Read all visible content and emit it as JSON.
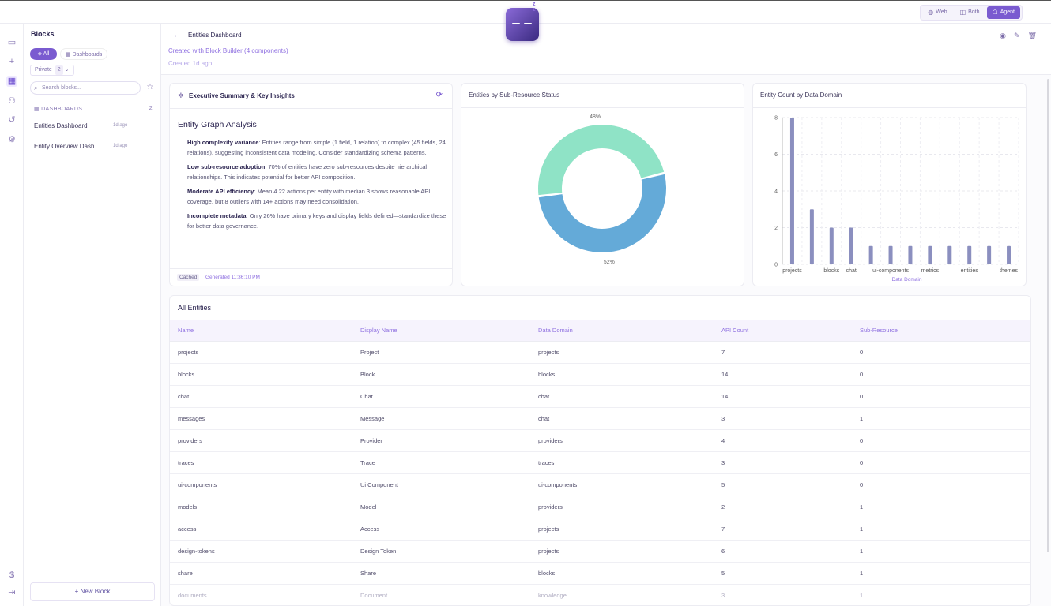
{
  "topbar": {
    "modes": [
      {
        "label": "Web",
        "icon": "globe-icon",
        "active": false
      },
      {
        "label": "Both",
        "icon": "split-icon",
        "active": false
      },
      {
        "label": "Agent",
        "icon": "robot-icon",
        "active": true
      }
    ]
  },
  "sidebar": {
    "title": "Blocks",
    "filters": {
      "all": "All",
      "dashboards": "Dashboards"
    },
    "private": {
      "label": "Private",
      "count": "2"
    },
    "search_placeholder": "Search blocks...",
    "section": {
      "label": "DASHBOARDS",
      "count": "2"
    },
    "items": [
      {
        "label": "Entities Dashboard",
        "ago": "1d ago"
      },
      {
        "label": "Entity Overview Dash...",
        "ago": "1d ago"
      }
    ],
    "new_block": "New Block"
  },
  "header": {
    "title": "Entities Dashboard",
    "subtitle": "Created with Block Builder (4 components)",
    "created": "Created 1d ago"
  },
  "insights": {
    "title": "Executive Summary & Key Insights",
    "heading": "Entity Graph Analysis",
    "points": [
      {
        "bold": "High complexity variance",
        "text": ": Entities range from simple (1 field, 1 relation) to complex (45 fields, 24 relations), suggesting inconsistent data modeling. Consider standardizing schema patterns."
      },
      {
        "bold": "Low sub-resource adoption",
        "text": ": 70% of entities have zero sub-resources despite hierarchical relationships. This indicates potential for better API composition."
      },
      {
        "bold": "Moderate API efficiency",
        "text": ": Mean 4.22 actions per entity with median 3 shows reasonable API coverage, but 8 outliers with 14+ actions may need consolidation."
      },
      {
        "bold": "Incomplete metadata",
        "text": ": Only 26% have primary keys and display fields defined—standardize these for better data governance."
      }
    ],
    "cached": "Cached",
    "generated": "Generated 11:36:10 PM"
  },
  "chart_data": [
    {
      "type": "pie",
      "title": "Entities by Sub-Resource Status",
      "slices": [
        {
          "name": "",
          "value": 48,
          "label": "48%",
          "color": "#8fe3c6"
        },
        {
          "name": "",
          "value": 52,
          "label": "52%",
          "color": "#64aad8"
        }
      ]
    },
    {
      "type": "bar",
      "title": "Entity Count by Data Domain",
      "xlabel": "Data Domain",
      "ylabel": "",
      "ylim": [
        0,
        8
      ],
      "yticks": [
        "0",
        "2",
        "4",
        "6",
        "8"
      ],
      "color": "#8b8fbf",
      "categories": [
        "projects",
        "",
        "blocks",
        "chat",
        "",
        "ui-components",
        "",
        "metrics",
        "",
        "entities",
        "",
        "themes"
      ],
      "values": [
        8,
        3,
        2,
        2,
        1,
        1,
        1,
        1,
        1,
        1,
        1,
        1
      ]
    }
  ],
  "table": {
    "title": "All Entities",
    "columns": [
      "Name",
      "Display Name",
      "Data Domain",
      "API Count",
      "Sub-Resource"
    ],
    "rows": [
      [
        "projects",
        "Project",
        "projects",
        "7",
        "0"
      ],
      [
        "blocks",
        "Block",
        "blocks",
        "14",
        "0"
      ],
      [
        "chat",
        "Chat",
        "chat",
        "14",
        "0"
      ],
      [
        "messages",
        "Message",
        "chat",
        "3",
        "1"
      ],
      [
        "providers",
        "Provider",
        "providers",
        "4",
        "0"
      ],
      [
        "traces",
        "Trace",
        "traces",
        "3",
        "0"
      ],
      [
        "ui-components",
        "Ui Component",
        "ui-components",
        "5",
        "0"
      ],
      [
        "models",
        "Model",
        "providers",
        "2",
        "1"
      ],
      [
        "access",
        "Access",
        "projects",
        "7",
        "1"
      ],
      [
        "design-tokens",
        "Design Token",
        "projects",
        "6",
        "1"
      ],
      [
        "share",
        "Share",
        "blocks",
        "5",
        "1"
      ],
      [
        "documents",
        "Document",
        "knowledge",
        "3",
        "1"
      ]
    ]
  }
}
